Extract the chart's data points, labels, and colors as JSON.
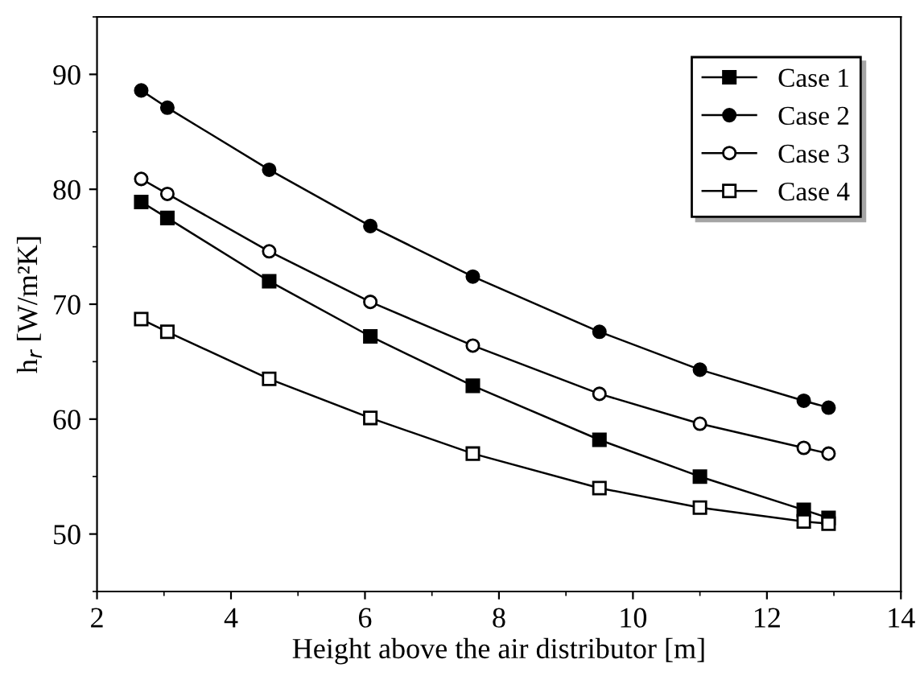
{
  "chart_data": {
    "type": "line",
    "xlabel": "Height above the air distributor [m]",
    "ylabel": "h$_{r}$ [W/m²K]",
    "x": [
      2.66,
      3.05,
      4.57,
      6.08,
      7.61,
      9.5,
      11.0,
      12.55,
      12.92
    ],
    "series": [
      {
        "name": "Case 1",
        "color": "#000000",
        "marker": "square",
        "values": [
          78.9,
          77.5,
          72.0,
          67.2,
          62.9,
          58.2,
          55.0,
          52.1,
          51.4
        ]
      },
      {
        "name": "Case 2",
        "color": "#000000",
        "marker": "circle",
        "values": [
          88.6,
          87.1,
          81.7,
          76.8,
          72.4,
          67.6,
          64.3,
          61.6,
          61.0
        ]
      },
      {
        "name": "Case 3",
        "color": "#000000",
        "marker": "circle",
        "values": [
          80.9,
          79.6,
          74.6,
          70.2,
          66.4,
          62.2,
          59.6,
          57.5,
          57.0
        ]
      },
      {
        "name": "Case 4",
        "color": "#000000",
        "marker": "square",
        "values": [
          68.7,
          67.6,
          63.5,
          60.1,
          57.0,
          54.0,
          52.3,
          51.1,
          50.9
        ]
      }
    ],
    "xlim": [
      2,
      14
    ],
    "xticks": [
      2,
      4,
      6,
      8,
      10,
      12,
      14
    ],
    "ylim": [
      45,
      95
    ],
    "yticks": [
      50,
      60,
      70,
      80,
      90
    ],
    "grid": false,
    "legend": "top right",
    "line_style": "solid"
  }
}
